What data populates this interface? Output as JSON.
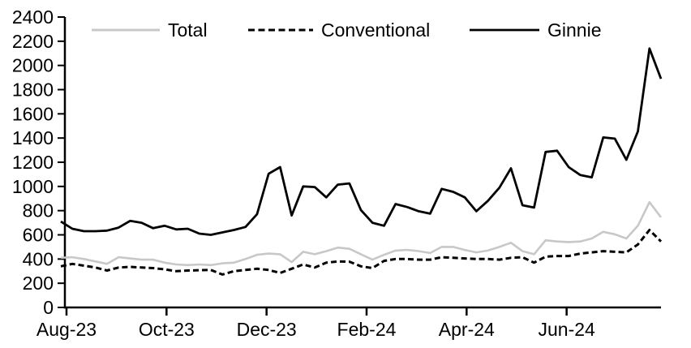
{
  "chart_data": {
    "type": "line",
    "title": "",
    "xlabel": "",
    "ylabel": "",
    "x_unit": "week",
    "x_tick_labels": [
      "Aug-23",
      "Oct-23",
      "Dec-23",
      "Feb-24",
      "Apr-24",
      "Jun-24"
    ],
    "y_ticks": [
      0,
      200,
      400,
      600,
      800,
      1000,
      1200,
      1400,
      1600,
      1800,
      2000,
      2200,
      2400
    ],
    "ylim": [
      0,
      2400
    ],
    "grid": false,
    "legend_position": "top",
    "axis_color": "#000000",
    "text_color": "#000000",
    "series": [
      {
        "name": "Total",
        "color": "#c8c8c8",
        "line_style": "solid",
        "values": [
          410,
          415,
          400,
          380,
          360,
          415,
          405,
          395,
          395,
          370,
          355,
          350,
          355,
          350,
          365,
          370,
          400,
          435,
          445,
          440,
          375,
          460,
          440,
          465,
          495,
          485,
          440,
          395,
          435,
          470,
          475,
          465,
          450,
          500,
          500,
          475,
          455,
          470,
          500,
          535,
          465,
          440,
          555,
          545,
          540,
          545,
          570,
          625,
          605,
          570,
          675,
          870,
          745
        ]
      },
      {
        "name": "Conventional",
        "color": "#000000",
        "line_style": "dashed",
        "values": [
          340,
          360,
          345,
          330,
          305,
          330,
          335,
          330,
          325,
          315,
          300,
          305,
          308,
          310,
          272,
          300,
          310,
          320,
          310,
          285,
          320,
          355,
          330,
          370,
          380,
          378,
          340,
          325,
          385,
          400,
          400,
          395,
          395,
          415,
          410,
          405,
          400,
          400,
          395,
          410,
          415,
          370,
          420,
          425,
          425,
          445,
          455,
          465,
          460,
          455,
          520,
          640,
          545
        ]
      },
      {
        "name": "Ginnie",
        "color": "#000000",
        "line_style": "solid",
        "values": [
          710,
          650,
          630,
          630,
          635,
          660,
          715,
          700,
          655,
          675,
          645,
          650,
          610,
          600,
          620,
          640,
          665,
          770,
          1105,
          1160,
          760,
          1000,
          995,
          910,
          1015,
          1025,
          805,
          700,
          675,
          855,
          830,
          795,
          775,
          980,
          955,
          910,
          795,
          880,
          990,
          1150,
          845,
          825,
          1285,
          1295,
          1160,
          1095,
          1075,
          1405,
          1395,
          1220,
          1455,
          2140,
          1890
        ]
      }
    ]
  }
}
